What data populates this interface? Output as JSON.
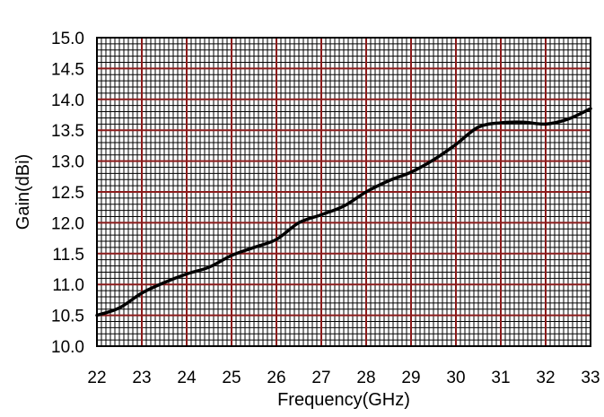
{
  "chart_data": {
    "type": "line",
    "title": "",
    "xlabel": "Frequency(GHz)",
    "ylabel": "Gain(dBi)",
    "xlim": [
      22,
      33
    ],
    "ylim": [
      10.0,
      15.0
    ],
    "x_ticks": [
      "22",
      "23",
      "24",
      "25",
      "26",
      "27",
      "28",
      "29",
      "30",
      "31",
      "32",
      "33"
    ],
    "y_ticks": [
      "10.0",
      "10.5",
      "11.0",
      "11.5",
      "12.0",
      "12.5",
      "13.0",
      "13.5",
      "14.0",
      "14.5",
      "15.0"
    ],
    "grid": true,
    "legend": "none",
    "colors": {
      "line": "#000000",
      "major_grid": "#8b1a1a",
      "minor_grid": "#000000",
      "frame": "#000000"
    },
    "series": [
      {
        "x": [
          22.0,
          22.5,
          23.0,
          23.5,
          24.0,
          24.5,
          25.0,
          25.5,
          26.0,
          26.5,
          27.0,
          27.5,
          28.0,
          28.5,
          29.0,
          29.5,
          30.0,
          30.5,
          31.0,
          31.5,
          32.0,
          32.5,
          33.0
        ],
        "y": [
          10.5,
          10.62,
          10.86,
          11.03,
          11.17,
          11.28,
          11.47,
          11.6,
          11.73,
          12.0,
          12.13,
          12.27,
          12.5,
          12.68,
          12.82,
          13.02,
          13.27,
          13.55,
          13.62,
          13.63,
          13.6,
          13.68,
          13.85
        ]
      }
    ]
  }
}
